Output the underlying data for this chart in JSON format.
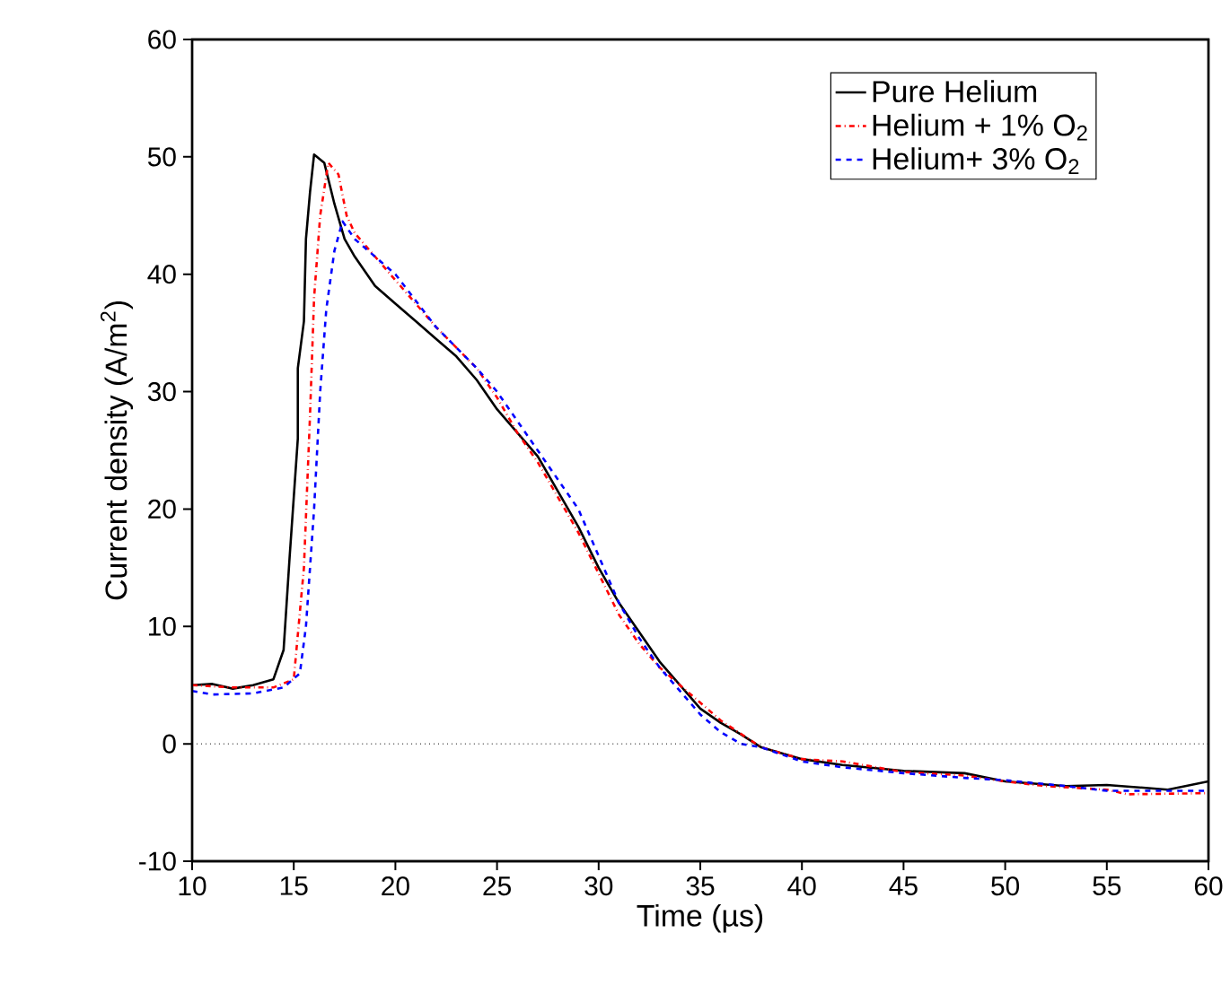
{
  "chart_data": {
    "type": "line",
    "xlabel": "Time (µs)",
    "ylabel": "Current density (A/m$^{2}$)",
    "xlim": [
      10,
      60
    ],
    "ylim": [
      -10,
      60
    ],
    "xticks": [
      10,
      15,
      20,
      25,
      30,
      35,
      40,
      45,
      50,
      55,
      60
    ],
    "yticks": [
      -10,
      0,
      10,
      20,
      30,
      40,
      50,
      60
    ],
    "grid": false,
    "legend": "top right",
    "marker": "none",
    "ref_lines": [
      {
        "axis": "y",
        "value": 0,
        "color": "#000000",
        "line_style": "dotted"
      }
    ],
    "series": [
      {
        "name": "Pure Helium",
        "color": "#000000",
        "line_style": "solid",
        "x": [
          10,
          11,
          12,
          13,
          14,
          14.5,
          14.8,
          15,
          15.2,
          15.2,
          15.5,
          15.6,
          15.8,
          16,
          16.5,
          17,
          17.5,
          18,
          19,
          20,
          21,
          22,
          23,
          24,
          25,
          26,
          27,
          28,
          29,
          30,
          31,
          32,
          33,
          34,
          35,
          36,
          37,
          38,
          40,
          42,
          45,
          48,
          50,
          53,
          55,
          58,
          60
        ],
        "values": [
          5,
          5.1,
          4.7,
          5,
          5.5,
          8,
          16,
          21,
          26,
          32,
          36,
          43,
          47,
          50.2,
          49.5,
          46,
          43,
          41.5,
          39,
          37.5,
          36,
          34.5,
          33,
          31,
          28.5,
          26.5,
          24.5,
          21.5,
          18.5,
          15,
          12,
          9.5,
          7,
          5,
          3,
          1.8,
          0.8,
          -0.3,
          -1.3,
          -1.8,
          -2.3,
          -2.5,
          -3.2,
          -3.6,
          -3.5,
          -3.9,
          -3.2
        ]
      },
      {
        "name": "Helium + 1% O$_{2}$",
        "color": "#ff0000",
        "line_style": "dashdot",
        "x": [
          10,
          12,
          14,
          15,
          15.5,
          15.8,
          16,
          16.3,
          16.7,
          17.2,
          17.6,
          18,
          20,
          22,
          24,
          25,
          26,
          27,
          28,
          29,
          30,
          31,
          32,
          33,
          34,
          35,
          36,
          38,
          40,
          42,
          45,
          48,
          50,
          52,
          55,
          56,
          60
        ],
        "values": [
          5,
          4.8,
          4.8,
          5.5,
          15,
          28,
          38,
          45,
          49.5,
          48.5,
          45,
          43.5,
          39.5,
          35.5,
          32,
          29.5,
          26.5,
          24,
          21,
          18,
          14.5,
          11,
          8.5,
          6.5,
          5,
          3.5,
          2,
          -0.3,
          -1.3,
          -1.5,
          -2.4,
          -2.7,
          -3.2,
          -3.6,
          -3.9,
          -4.3,
          -4.2
        ]
      },
      {
        "name": "Helium+ 3% O$_{2}$",
        "color": "#0000ff",
        "line_style": "dashed",
        "x": [
          10,
          11,
          13,
          14.5,
          15.3,
          15.6,
          16,
          16.3,
          16.6,
          17,
          17.4,
          18,
          20,
          22,
          24,
          25,
          26,
          27,
          28,
          29,
          30,
          31,
          32,
          33,
          34,
          35,
          36,
          37,
          38,
          40,
          42,
          45,
          48,
          50,
          53,
          55,
          57,
          60
        ],
        "values": [
          4.5,
          4.2,
          4.3,
          4.8,
          6,
          10,
          20,
          30,
          37,
          42,
          44.5,
          43,
          40,
          35.5,
          32,
          30,
          27.5,
          25,
          22.5,
          20,
          16,
          12,
          9,
          6.5,
          4.5,
          2.5,
          1,
          0,
          -0.3,
          -1.5,
          -2,
          -2.5,
          -2.9,
          -3.1,
          -3.6,
          -4,
          -4,
          -4
        ]
      }
    ]
  }
}
